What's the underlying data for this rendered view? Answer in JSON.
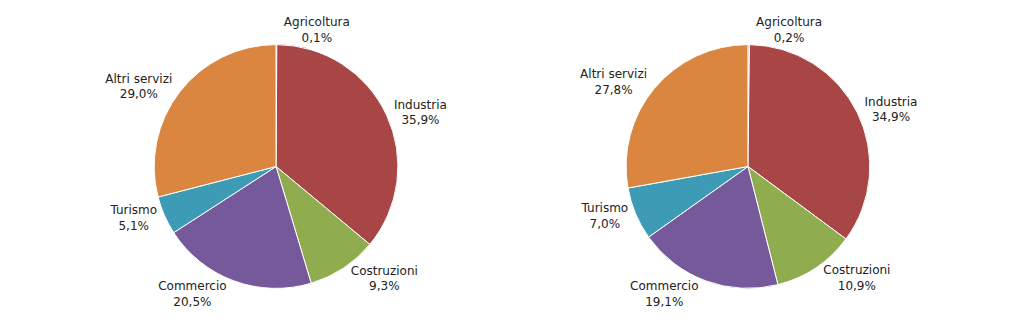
{
  "chart_data": [
    {
      "type": "pie",
      "categories": [
        "Agricoltura",
        "Industria",
        "Costruzioni",
        "Commercio",
        "Turismo",
        "Altri servizi"
      ],
      "values": [
        0.1,
        35.9,
        9.3,
        20.5,
        5.1,
        29.0
      ],
      "value_labels": [
        "0,1%",
        "35,9%",
        "9,3%",
        "20,5%",
        "5,1%",
        "29,0%"
      ],
      "colors": [
        "#8c8c8c",
        "#a84646",
        "#8fac4e",
        "#76599a",
        "#3e9bb6",
        "#da8540"
      ],
      "data_labels": true
    },
    {
      "type": "pie",
      "categories": [
        "Agricoltura",
        "Industria",
        "Costruzioni",
        "Commercio",
        "Turismo",
        "Altri servizi"
      ],
      "values": [
        0.2,
        34.9,
        10.9,
        19.1,
        7.0,
        27.8
      ],
      "value_labels": [
        "0,2%",
        "34,9%",
        "10,9%",
        "19,1%",
        "7,0%",
        "27,8%"
      ],
      "colors": [
        "#8c8c8c",
        "#a84646",
        "#8fac4e",
        "#76599a",
        "#3e9bb6",
        "#da8540"
      ],
      "data_labels": true
    }
  ]
}
